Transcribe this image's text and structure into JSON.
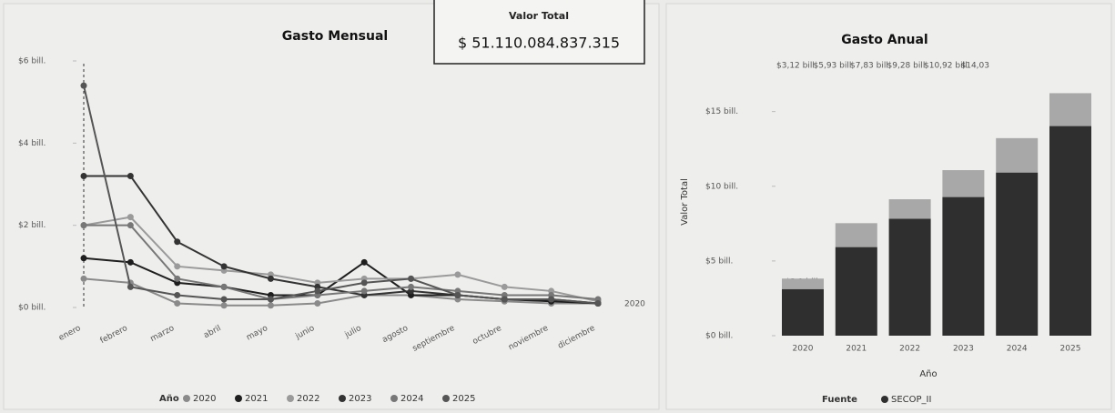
{
  "card": {
    "label": "Valor Total",
    "value": "$ 51.110.084.837.315"
  },
  "chart_data": [
    {
      "type": "line",
      "title": "Gasto Mensual",
      "legend_title": "Año",
      "categories": [
        "enero",
        "febrero",
        "marzo",
        "abril",
        "mayo",
        "junio",
        "julio",
        "agosto",
        "septiembre",
        "octubre",
        "noviembre",
        "diciembre"
      ],
      "series": [
        {
          "name": "2020",
          "color": "#8a8a8a",
          "values": [
            0.7,
            0.6,
            0.1,
            0.05,
            0.05,
            0.1,
            0.3,
            0.3,
            0.2,
            0.15,
            0.1,
            0.1
          ]
        },
        {
          "name": "2021",
          "color": "#1e1e1e",
          "values": [
            1.2,
            1.1,
            0.6,
            0.5,
            0.3,
            0.3,
            1.1,
            0.3,
            0.3,
            0.2,
            0.15,
            0.1
          ]
        },
        {
          "name": "2022",
          "color": "#9a9a9a",
          "values": [
            2.0,
            2.2,
            1.0,
            0.9,
            0.8,
            0.6,
            0.7,
            0.7,
            0.8,
            0.5,
            0.4,
            0.15
          ]
        },
        {
          "name": "2023",
          "color": "#333333",
          "values": [
            3.2,
            3.2,
            1.6,
            1.0,
            0.7,
            0.5,
            0.3,
            0.4,
            0.3,
            0.2,
            0.2,
            0.1
          ]
        },
        {
          "name": "2024",
          "color": "#777777",
          "values": [
            2.0,
            2.0,
            0.7,
            0.5,
            0.2,
            0.3,
            0.4,
            0.5,
            0.4,
            0.3,
            0.3,
            0.2
          ]
        },
        {
          "name": "2025",
          "color": "#555555",
          "values": [
            5.4,
            0.5,
            0.3,
            0.2,
            0.2,
            0.4,
            0.6,
            0.7,
            0.3,
            0.2,
            0.2,
            0.1
          ]
        }
      ],
      "ylim": [
        0,
        6
      ],
      "yticks": [
        {
          "value": 0,
          "label": "$0 bill."
        },
        {
          "value": 2,
          "label": "$2 bill."
        },
        {
          "value": 4,
          "label": "$4 bill."
        },
        {
          "value": 6,
          "label": "$6 bill."
        }
      ]
    },
    {
      "type": "bar",
      "title": "Gasto Anual",
      "x_label": "Año",
      "y_label": "Valor Total",
      "legend_title": "Fuente",
      "categories": [
        "2020",
        "2021",
        "2022",
        "2023",
        "2024",
        "2025"
      ],
      "top_labels": [
        "$3,12 bill.",
        "$5,93 bill",
        "$7,83 bill.",
        "$9,28 bill",
        "$10,92 bill",
        "$14,03"
      ],
      "series": [
        {
          "name": "SECOP_II",
          "color": "#2f2f2f",
          "values": [
            3.12,
            5.93,
            7.83,
            9.28,
            10.92,
            14.03
          ],
          "value_labels": [
            "$3,1 bill.",
            "$5,9 bill.",
            "$7,8 bill.",
            "$9,3 bill.",
            "$10,9 bill.",
            "$14,0 bill."
          ]
        },
        {
          "color": "#a8a8a8",
          "values": [
            0.7,
            1.6,
            1.3,
            1.8,
            2.3,
            2.2
          ]
        }
      ],
      "ylim": [
        0,
        16.5
      ],
      "yticks": [
        {
          "value": 0,
          "label": "$0 bill."
        },
        {
          "value": 5,
          "label": "$5 bill."
        },
        {
          "value": 10,
          "label": "$10 bill."
        },
        {
          "value": 15,
          "label": "$15 bill."
        }
      ]
    }
  ]
}
